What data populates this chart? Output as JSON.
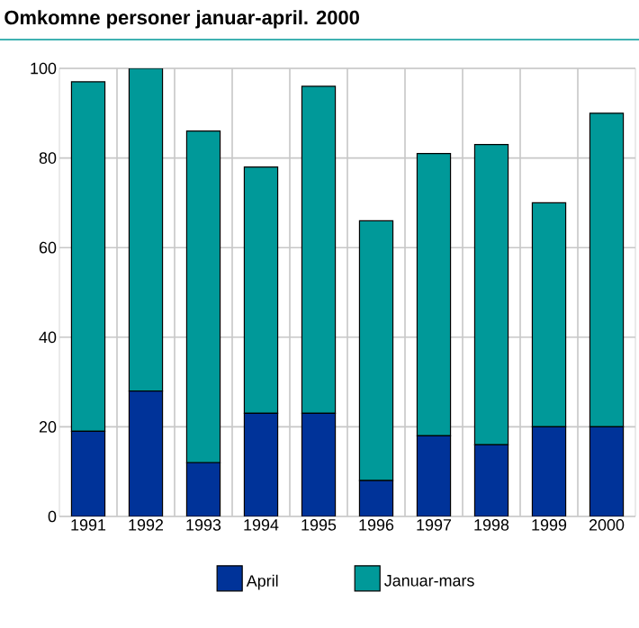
{
  "chart_data": {
    "type": "bar",
    "title": "Omkomne personer januar-april. 2000",
    "categories": [
      "1991",
      "1992",
      "1993",
      "1994",
      "1995",
      "1996",
      "1997",
      "1998",
      "1999",
      "2000"
    ],
    "stacked": true,
    "series": [
      {
        "name": "April",
        "color": "#003399",
        "values": [
          19,
          28,
          12,
          23,
          23,
          8,
          18,
          16,
          20,
          20
        ]
      },
      {
        "name": "Januar-mars",
        "color": "#009999",
        "values": [
          78,
          72,
          74,
          55,
          73,
          58,
          63,
          67,
          50,
          70
        ]
      }
    ],
    "ylim": [
      0,
      100
    ],
    "yticks": [
      0,
      20,
      40,
      60,
      80,
      100
    ],
    "grid": true,
    "legend": "bottom"
  }
}
